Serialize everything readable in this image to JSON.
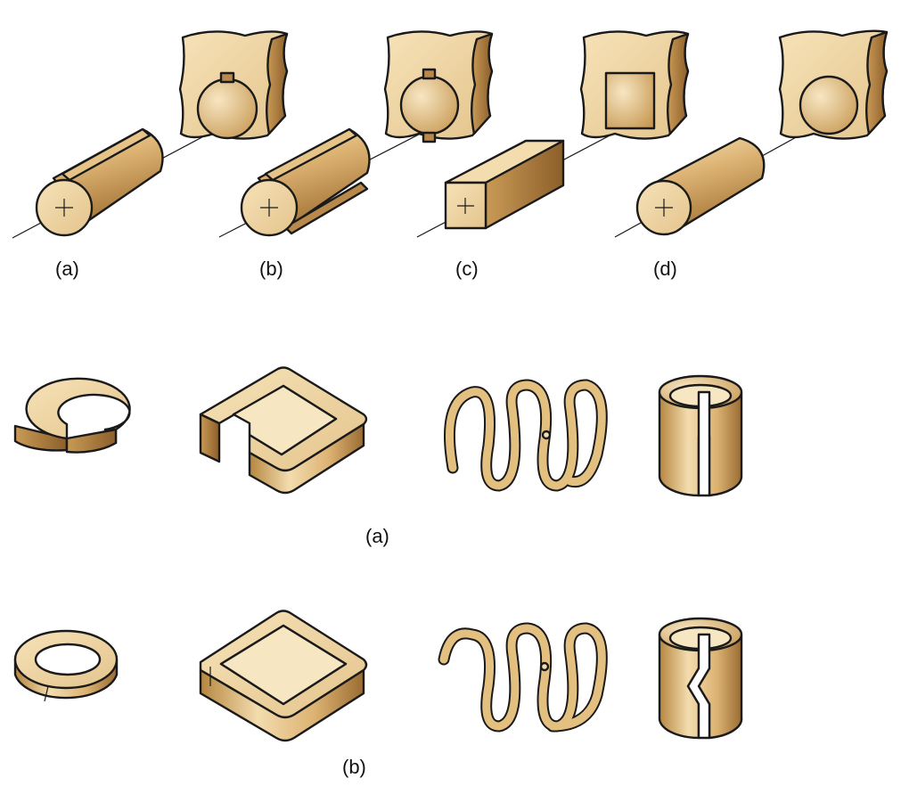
{
  "figure": {
    "colors": {
      "light": "#f3dcae",
      "mid": "#dcb272",
      "dark": "#a8793a",
      "outline": "#1a1a1a",
      "background": "#ffffff"
    },
    "row1": {
      "labels": [
        "(a)",
        "(b)",
        "(c)",
        "(d)"
      ],
      "items": [
        "keyed-shaft",
        "splined-shaft",
        "square-shaft",
        "round-shaft"
      ]
    },
    "row2": {
      "label": "(a)",
      "items": [
        "split-ring-open",
        "square-frame-open",
        "coil-spring-open-ends",
        "slit-tube-straight"
      ]
    },
    "row3": {
      "label": "(b)",
      "items": [
        "split-ring-closed",
        "square-frame-closed",
        "coil-spring-closed-ends",
        "slit-tube-stepped"
      ]
    }
  }
}
